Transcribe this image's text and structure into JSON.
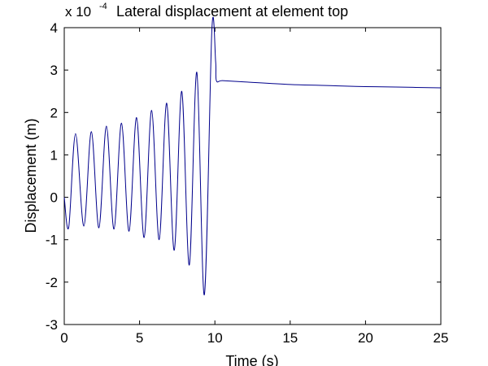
{
  "chart_data": {
    "type": "line",
    "title": "Lateral displacement at element top",
    "xlabel": "Time (s)",
    "ylabel": "Displacement (m)",
    "y_multiplier": {
      "base": "x 10",
      "exponent": "-4"
    },
    "xlim": [
      0,
      25
    ],
    "ylim": [
      -3,
      4
    ],
    "x_ticks": [
      0,
      5,
      10,
      15,
      20,
      25
    ],
    "y_ticks": [
      -3,
      -2,
      -1,
      0,
      1,
      2,
      3,
      4
    ],
    "x_tick_labels": [
      "0",
      "5",
      "10",
      "15",
      "20",
      "25"
    ],
    "y_tick_labels": [
      "-3",
      "-2",
      "-1",
      "0",
      "1",
      "2",
      "3",
      "4"
    ],
    "grid": false,
    "series_color": "#00008b",
    "series": [
      {
        "x": [
          0,
          0.3,
          0.75,
          1.3,
          1.8,
          2.3,
          2.8,
          3.3,
          3.8,
          4.3,
          4.8,
          5.3,
          5.8,
          6.3,
          6.8,
          7.3,
          7.8,
          8.3,
          8.8,
          9.3,
          9.8,
          10.05,
          10.1,
          10.5,
          12,
          15,
          18,
          20,
          22,
          25
        ],
        "y": [
          0,
          -0.7,
          1.5,
          -0.68,
          1.55,
          -0.72,
          1.68,
          -0.75,
          1.75,
          -0.8,
          1.88,
          -0.95,
          2.05,
          -1.0,
          2.22,
          -1.25,
          2.5,
          -1.6,
          2.95,
          -2.3,
          3.95,
          3.2,
          2.75,
          2.75,
          2.72,
          2.66,
          2.63,
          2.61,
          2.6,
          2.58
        ]
      }
    ]
  }
}
